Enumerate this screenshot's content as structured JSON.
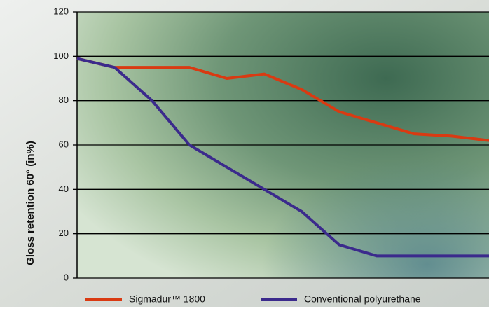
{
  "chart_data": {
    "type": "line",
    "y_label": "Gloss retention 60° (in%)",
    "categories": [
      null,
      null,
      null,
      null,
      null,
      null,
      null,
      null,
      null,
      null,
      null,
      null
    ],
    "series": [
      {
        "name": "Sigmadur™ 1800",
        "color": "#d93a12",
        "values": [
          99,
          95,
          95,
          95,
          90,
          92,
          85,
          75,
          70,
          65,
          64,
          62
        ]
      },
      {
        "name": "Conventional polyurethane",
        "color": "#3b2a8c",
        "values": [
          99,
          95,
          80,
          60,
          50,
          40,
          30,
          15,
          10,
          10,
          10,
          10
        ]
      }
    ],
    "ylim": [
      0,
      120
    ],
    "yticks": [
      0,
      20,
      40,
      60,
      80,
      100,
      120
    ],
    "grid": true
  }
}
